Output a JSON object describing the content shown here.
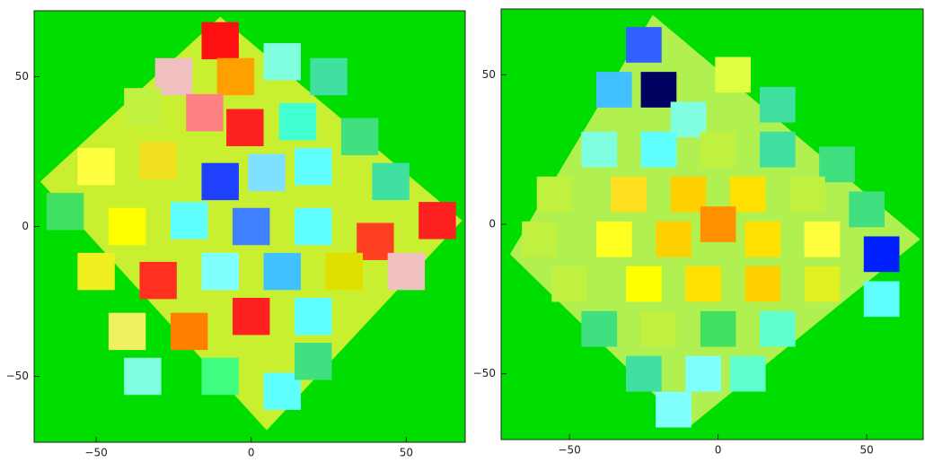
{
  "chart_data": [
    {
      "type": "scatter",
      "xlim": [
        -70,
        69
      ],
      "ylim": [
        -72,
        72
      ],
      "xticks": [
        {
          "value": -50,
          "label": "−50"
        },
        0,
        50
      ],
      "yticks": [
        {
          "value": -50,
          "label": "−50"
        },
        0,
        50
      ],
      "x": [
        -10,
        -25,
        -5,
        10,
        25,
        -35,
        -15,
        -2,
        15,
        35,
        -50,
        -30,
        -10,
        5,
        20,
        45,
        60,
        -60,
        -40,
        -20,
        0,
        20,
        40,
        -50,
        -30,
        -10,
        10,
        30,
        50,
        -40,
        -20,
        0,
        20,
        -35,
        -10,
        10,
        20
      ],
      "y": [
        62,
        50,
        50,
        55,
        50,
        40,
        38,
        33,
        35,
        30,
        20,
        22,
        15,
        18,
        20,
        15,
        2,
        5,
        0,
        2,
        0,
        0,
        -5,
        -15,
        -18,
        -15,
        -15,
        -15,
        -15,
        -35,
        -35,
        -30,
        -30,
        -50,
        -50,
        -55,
        -45
      ],
      "colors": [
        "#ff1010",
        "#f0c0c0",
        "#ffa000",
        "#80ffe0",
        "#40e0a0",
        "#c0f040",
        "#ff8080",
        "#ff2020",
        "#40ffd0",
        "#40e080",
        "#ffff40",
        "#f0e020",
        "#2040ff",
        "#80e0ff",
        "#60ffff",
        "#40e0a0",
        "#ff2020",
        "#40e060",
        "#ffff00",
        "#60ffff",
        "#4080ff",
        "#60ffff",
        "#ff4020",
        "#f0f020",
        "#ff3020",
        "#80ffff",
        "#40c0ff",
        "#e0e000",
        "#f0c0c0",
        "#f0f060",
        "#ff8000",
        "#ff2020",
        "#60ffff",
        "#80ffe0",
        "#40ff80",
        "#60ffff",
        "#40e080"
      ]
    },
    {
      "type": "scatter",
      "xlim": [
        -73,
        69
      ],
      "ylim": [
        -72,
        72
      ],
      "xticks": [
        {
          "value": -50,
          "label": "−50"
        },
        0,
        50
      ],
      "yticks": [
        {
          "value": -50,
          "label": "−50"
        },
        0,
        50
      ],
      "x": [
        -25,
        -20,
        -10,
        -35,
        5,
        20,
        -40,
        -20,
        0,
        20,
        40,
        -55,
        -30,
        -10,
        10,
        30,
        50,
        -60,
        -35,
        -15,
        0,
        15,
        35,
        55,
        -50,
        -25,
        -5,
        15,
        35,
        55,
        -40,
        -20,
        0,
        20,
        -25,
        -5,
        10,
        -15
      ],
      "y": [
        60,
        45,
        35,
        45,
        50,
        40,
        25,
        25,
        25,
        25,
        20,
        10,
        10,
        10,
        10,
        10,
        5,
        -5,
        -5,
        -5,
        0,
        -5,
        -5,
        -10,
        -20,
        -20,
        -20,
        -20,
        -20,
        -25,
        -35,
        -35,
        -35,
        -35,
        -50,
        -50,
        -50,
        -62
      ],
      "colors": [
        "#3060ff",
        "#000060",
        "#80ffe0",
        "#40c0ff",
        "#e0ff40",
        "#40e0a0",
        "#80ffe0",
        "#60ffff",
        "#c0f040",
        "#40e0a0",
        "#40e080",
        "#c0f040",
        "#ffe020",
        "#ffd000",
        "#ffe000",
        "#c0f040",
        "#40e080",
        "#c0f040",
        "#ffff20",
        "#ffd000",
        "#ff9000",
        "#ffe000",
        "#ffff40",
        "#0020ff",
        "#c0f040",
        "#ffff00",
        "#ffe000",
        "#ffd000",
        "#e0f020",
        "#60ffff",
        "#40e080",
        "#c0f040",
        "#40e060",
        "#60ffd0",
        "#40e0a0",
        "#80ffff",
        "#60ffd0",
        "#80ffff"
      ]
    }
  ]
}
